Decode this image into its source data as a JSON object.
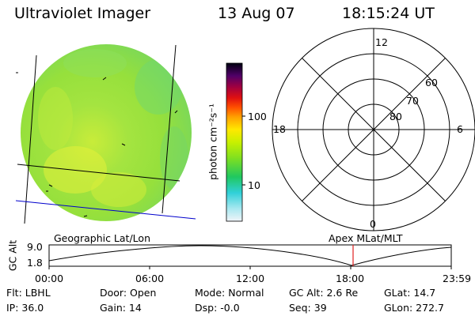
{
  "header": {
    "instrument": "Ultraviolet Imager",
    "date": "13 Aug 07",
    "time": "18:15:24 UT"
  },
  "colorbar": {
    "unit_label": "photon cm⁻²s⁻¹",
    "ticks": [
      "100",
      "10"
    ],
    "scale": "log",
    "colors": [
      "#000018",
      "#2a0030",
      "#5a0068",
      "#b0003a",
      "#e01414",
      "#ff6a00",
      "#ffa500",
      "#ffe000",
      "#d8f000",
      "#8ce000",
      "#2ad000",
      "#18c8a0",
      "#20c8e0",
      "#9ce8f0",
      "#e8f4f8"
    ]
  },
  "image_panel": {
    "dominant_color": "#9ee43c",
    "highlight_color": "#e8f03a",
    "grid_line_color": "#000000",
    "terminator_color": "#0000cc"
  },
  "polar_plot": {
    "mlt_labels": [
      "12",
      "18",
      "6",
      "0"
    ],
    "lat_labels": [
      "60",
      "70",
      "80"
    ]
  },
  "timeline": {
    "left_label": "Geographic Lat/Lon",
    "right_label": "Apex  MLat/MLT",
    "y_axis_label": "GC Alt",
    "y_ticks": [
      "9.0",
      "1.8"
    ],
    "x_ticks": [
      "00:00",
      "06:00",
      "12:00",
      "18:00",
      "23:59"
    ],
    "marker_color": "#e02020",
    "marker_time": "18:15"
  },
  "info": {
    "flt": "Flt: LBHL",
    "door": "Door: Open",
    "mode": "Mode: Normal",
    "gc_alt": "GC Alt: 2.6 Re",
    "glat": "GLat:  14.7",
    "ip": "IP: 36.0",
    "gain": "Gain: 14",
    "dsp": "Dsp:   -0.0",
    "seq": "Seq: 39",
    "glon": "GLon: 272.7"
  }
}
